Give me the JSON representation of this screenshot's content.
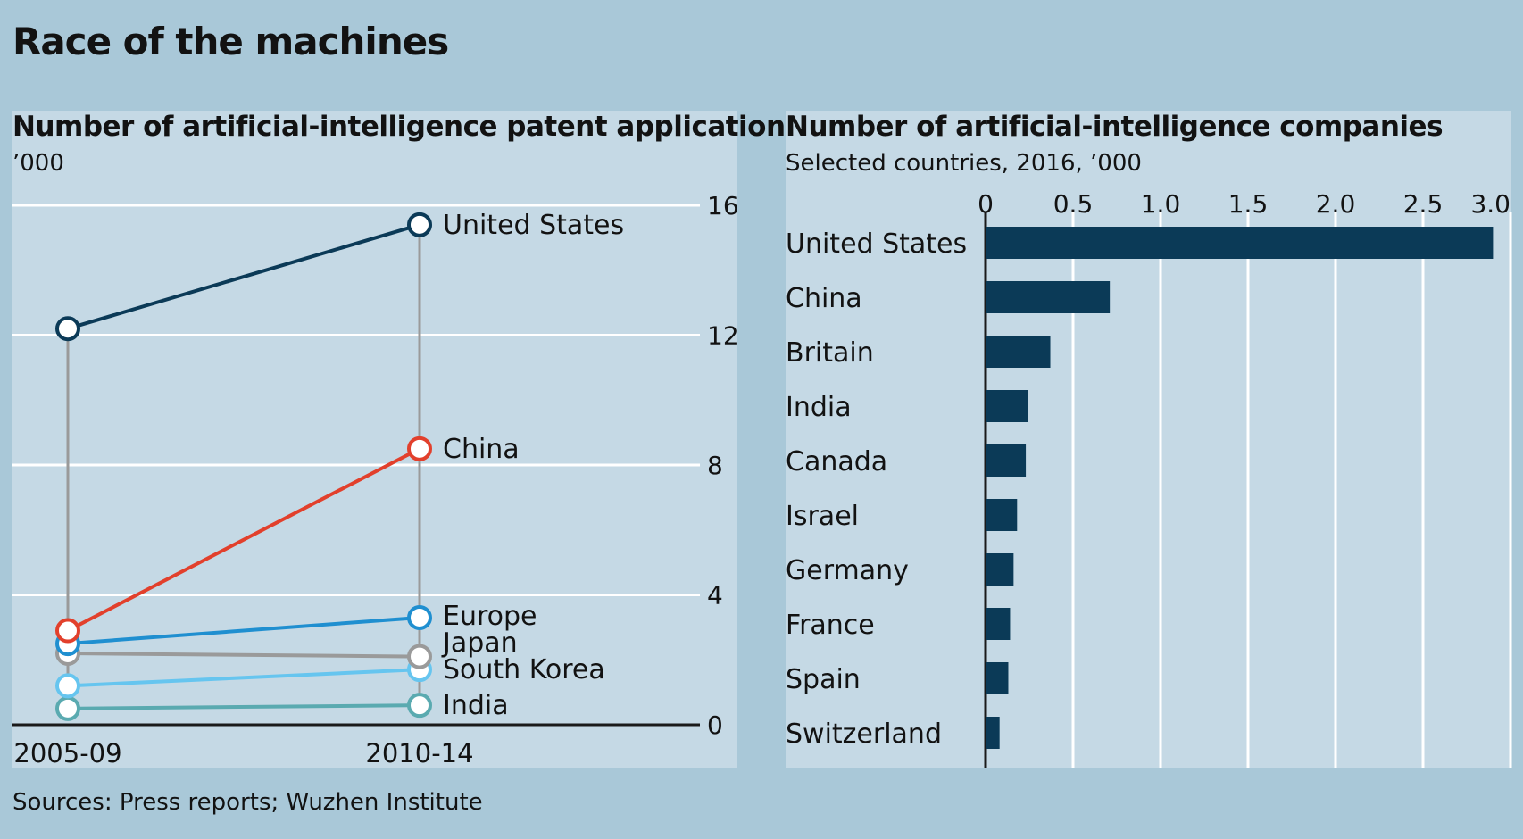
{
  "title": "Race of the machines",
  "source": "Sources: Press reports; Wuzhen Institute",
  "colors": {
    "united_states": "#0b3a57",
    "china": "#e2402c",
    "europe": "#1f8fd0",
    "japan": "#9a9a9a",
    "south_korea": "#66c5ef",
    "india": "#5aaab0",
    "bar": "#0b3a57",
    "connector": "#9a9a9a"
  },
  "chart_data": [
    {
      "type": "line",
      "title": "Number of artificial-intelligence patent applications",
      "subtitle": "’000",
      "categories": [
        "2005-09",
        "2010-14"
      ],
      "ylim": [
        0,
        16
      ],
      "yticks": [
        0,
        4,
        8,
        12,
        16
      ],
      "series": [
        {
          "name": "United States",
          "key": "united_states",
          "values": [
            12.2,
            15.4
          ]
        },
        {
          "name": "China",
          "key": "china",
          "values": [
            2.9,
            8.5
          ]
        },
        {
          "name": "Europe",
          "key": "europe",
          "values": [
            2.5,
            3.3
          ]
        },
        {
          "name": "Japan",
          "key": "japan",
          "values": [
            2.2,
            2.1
          ]
        },
        {
          "name": "South Korea",
          "key": "south_korea",
          "values": [
            1.2,
            1.7
          ]
        },
        {
          "name": "India",
          "key": "india",
          "values": [
            0.5,
            0.6
          ]
        }
      ]
    },
    {
      "type": "bar",
      "orientation": "horizontal",
      "title": "Number of artificial-intelligence companies",
      "subtitle": "Selected countries, 2016, ’000",
      "categories": [
        "United States",
        "China",
        "Britain",
        "India",
        "Canada",
        "Israel",
        "Germany",
        "France",
        "Spain",
        "Switzerland"
      ],
      "values": [
        2.9,
        0.71,
        0.37,
        0.24,
        0.23,
        0.18,
        0.16,
        0.14,
        0.13,
        0.08
      ],
      "xlim": [
        0,
        3.0
      ],
      "xticks": [
        "0",
        "0.5",
        "1.0",
        "1.5",
        "2.0",
        "2.5",
        "3.0"
      ]
    }
  ]
}
